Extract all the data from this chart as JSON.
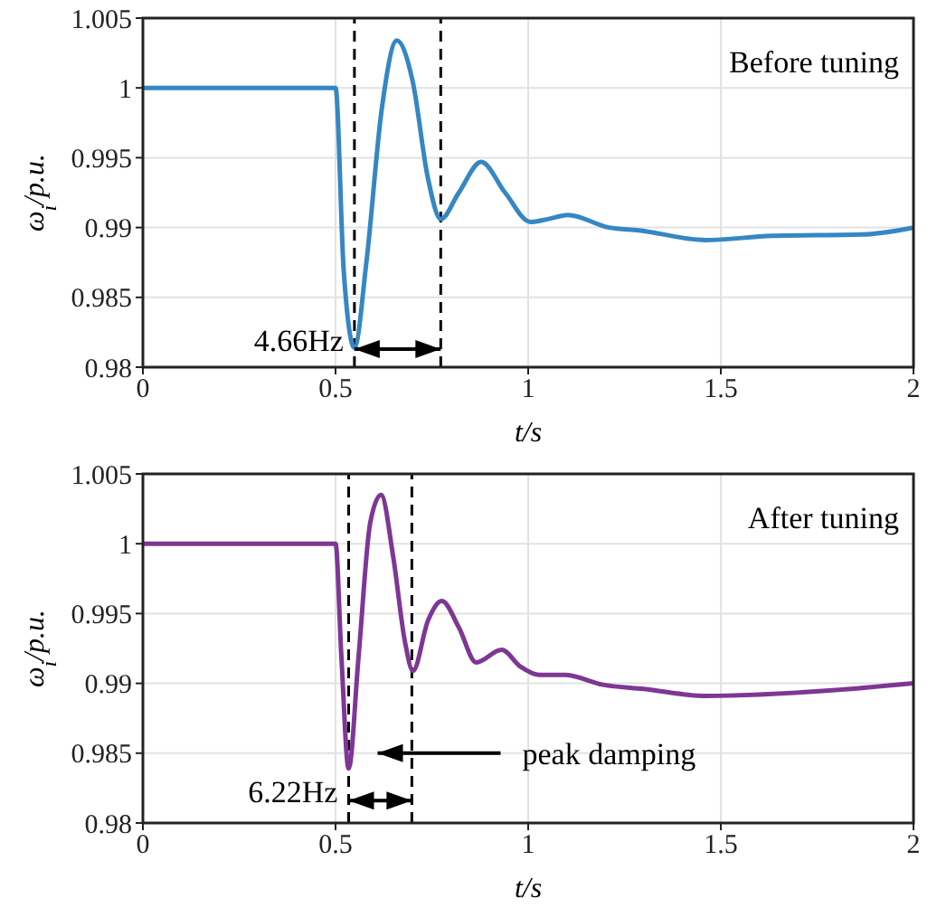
{
  "chart_data": [
    {
      "type": "line",
      "xlabel": "t/s",
      "ylabel": "ω$_{i}$/p.u.",
      "xlim": [
        0,
        2
      ],
      "xticks": [
        0,
        0.5,
        1,
        1.5,
        2
      ],
      "ylim": [
        0.98,
        1.005
      ],
      "yticks": [
        0.98,
        0.985,
        0.99,
        0.995,
        1,
        1.005
      ],
      "grid": true,
      "series": [
        {
          "color": "#3587c4",
          "x": [
            0,
            0.5,
            0.521,
            0.549,
            0.58,
            0.62,
            0.659,
            0.7,
            0.74,
            0.773,
            0.82,
            0.878,
            0.94,
            1.006,
            1.05,
            1.103,
            1.21,
            1.288,
            1.46,
            1.632,
            1.867,
            2
          ],
          "values": [
            1,
            1,
            0.987,
            0.9814,
            0.9875,
            0.9985,
            1.0034,
            1.0005,
            0.9935,
            0.9906,
            0.9925,
            0.9947,
            0.9925,
            0.9904,
            0.9906,
            0.9909,
            0.99,
            0.9898,
            0.9891,
            0.9894,
            0.9895,
            0.99
          ]
        }
      ],
      "ref_lines": [
        {
          "axis": "x",
          "value": 0.549,
          "color": "#000000",
          "line_style": "dashed"
        },
        {
          "axis": "x",
          "value": 0.773,
          "color": "#000000",
          "line_style": "dashed"
        }
      ],
      "annotations": [
        "Before tuning",
        {
          "text": "4.66Hz",
          "x": 0.549,
          "y": 0.9813
        }
      ]
    },
    {
      "type": "line",
      "xlabel": "t/s",
      "ylabel": "ω$_{i}$/p.u.",
      "xlim": [
        0,
        2
      ],
      "xticks": [
        0,
        0.5,
        1,
        1.5,
        2
      ],
      "ylim": [
        0.98,
        1.005
      ],
      "yticks": [
        0.98,
        0.985,
        0.99,
        0.995,
        1,
        1.005
      ],
      "grid": true,
      "series": [
        {
          "color": "#7e3794",
          "x": [
            0,
            0.5,
            0.515,
            0.534,
            0.56,
            0.59,
            0.618,
            0.65,
            0.68,
            0.701,
            0.74,
            0.776,
            0.82,
            0.865,
            0.931,
            0.98,
            1.03,
            1.095,
            1.194,
            1.3,
            1.46,
            1.789,
            2
          ],
          "values": [
            1,
            1,
            0.992,
            0.9839,
            0.992,
            1.0015,
            1.0035,
            0.999,
            0.993,
            0.9909,
            0.9945,
            0.9959,
            0.994,
            0.9915,
            0.9924,
            0.9912,
            0.9906,
            0.9906,
            0.9899,
            0.9896,
            0.9891,
            0.9895,
            0.99
          ]
        }
      ],
      "ref_lines": [
        {
          "axis": "x",
          "value": 0.534,
          "color": "#000000",
          "line_style": "dashed"
        },
        {
          "axis": "x",
          "value": 0.698,
          "color": "#000000",
          "line_style": "dashed"
        }
      ],
      "annotations": [
        "After tuning",
        {
          "text": "6.22Hz",
          "x": 0.534,
          "y": 0.9816
        },
        "peak damping"
      ]
    }
  ]
}
